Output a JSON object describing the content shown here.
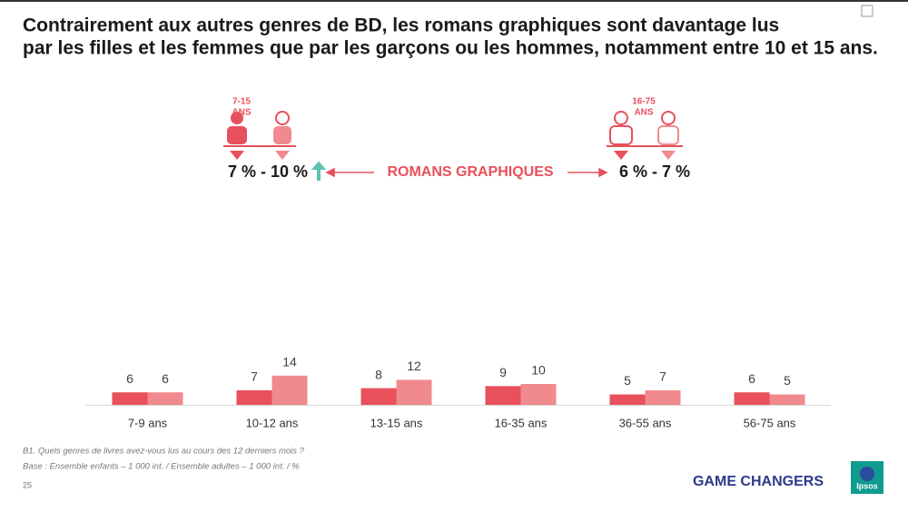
{
  "chart_data": {
    "type": "bar",
    "title": [
      "Contrairement aux autres genres de BD, les romans graphiques sont davantage lus",
      "par les filles et les femmes que par les garçons ou les hommes, notamment entre 10 et 15 ans."
    ],
    "categories": [
      "7-9 ans",
      "10-12 ans",
      "13-15 ans",
      "16-35 ans",
      "36-55 ans",
      "56-75 ans"
    ],
    "series": [
      {
        "color": "#e8505b",
        "values": [
          6,
          7,
          8,
          9,
          5,
          6
        ]
      },
      {
        "color": "#f08a8f",
        "values": [
          6,
          14,
          12,
          10,
          7,
          5
        ]
      }
    ]
  },
  "infographic": {
    "left_age": [
      "7-15",
      "ANS"
    ],
    "left_value": "7 % - 10 %",
    "center": "ROMANS GRAPHIQUES",
    "right_age": [
      "16-75",
      "ANS"
    ],
    "right_value": "6 % - 7 %"
  },
  "footer": {
    "question": "B1. Quels genres de livres avez-vous lus au cours des 12 derniers mois ?",
    "base": "Base : Ensemble enfants – 1 000 int. / Ensemble adultes – 1 000 int. / %",
    "page": "25",
    "brand": "GAME CHANGERS",
    "logo": "Ipsos"
  }
}
